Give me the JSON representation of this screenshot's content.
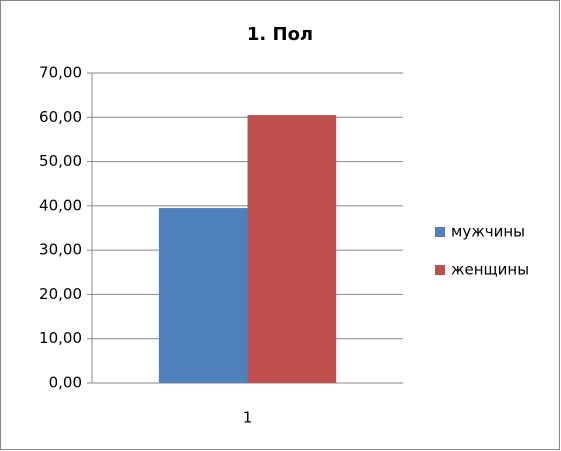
{
  "chart_data": {
    "type": "bar",
    "title": "1. Пол",
    "categories": [
      "1"
    ],
    "series": [
      {
        "name": "мужчины",
        "color": "#4f81bd",
        "values": [
          39.5
        ]
      },
      {
        "name": "женщины",
        "color": "#c0504d",
        "values": [
          60.5
        ]
      }
    ],
    "ylim": [
      0,
      70
    ],
    "yticks": [
      {
        "value": 0,
        "label": "0,00"
      },
      {
        "value": 10,
        "label": "10,00"
      },
      {
        "value": 20,
        "label": "20,00"
      },
      {
        "value": 30,
        "label": "30,00"
      },
      {
        "value": 40,
        "label": "40,00"
      },
      {
        "value": 50,
        "label": "50,00"
      },
      {
        "value": 60,
        "label": "60,00"
      },
      {
        "value": 70,
        "label": "70,00"
      }
    ],
    "grid": true,
    "legend": "right"
  }
}
